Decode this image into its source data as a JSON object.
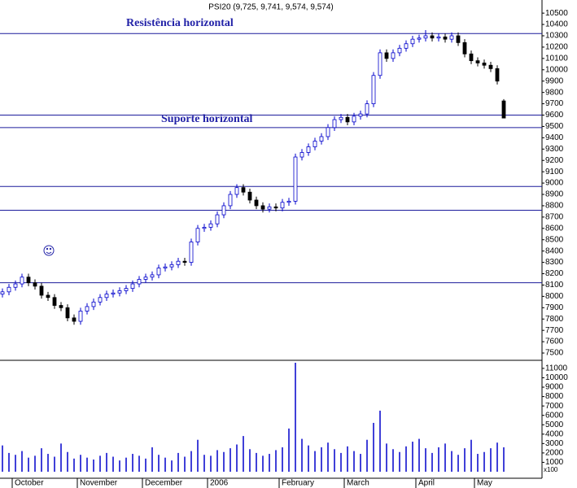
{
  "chart_data": {
    "type": "candlestick",
    "title": "PSI20 (9,725, 9,741, 9,574, 9,574)",
    "categories": [
      null,
      null,
      "October",
      null,
      null,
      null,
      null,
      null,
      null,
      null,
      null,
      null,
      "November",
      null,
      null,
      null,
      null,
      null,
      null,
      null,
      null,
      null,
      "December",
      null,
      null,
      null,
      null,
      null,
      null,
      null,
      null,
      null,
      "2006",
      null,
      null,
      null,
      null,
      null,
      null,
      null,
      null,
      null,
      null,
      "February",
      null,
      null,
      null,
      null,
      null,
      null,
      null,
      null,
      null,
      "March",
      null,
      null,
      null,
      null,
      null,
      null,
      null,
      null,
      null,
      null,
      "April",
      null,
      null,
      null,
      null,
      null,
      null,
      null,
      null,
      "May",
      null,
      null,
      null,
      null
    ],
    "open": [
      8020,
      8040,
      8080,
      8110,
      8170,
      8120,
      8090,
      8010,
      7990,
      7920,
      7900,
      7810,
      7780,
      7870,
      7910,
      7950,
      7990,
      8020,
      8030,
      8050,
      8070,
      8110,
      8150,
      8170,
      8190,
      8250,
      8260,
      8280,
      8310,
      8300,
      8480,
      8600,
      8610,
      8640,
      8720,
      8800,
      8900,
      8960,
      8920,
      8850,
      8800,
      8770,
      8790,
      8780,
      8830,
      8840,
      9230,
      9270,
      9320,
      9370,
      9410,
      9490,
      9560,
      9580,
      9540,
      9590,
      9610,
      9700,
      9950,
      10150,
      10100,
      10150,
      10190,
      10230,
      10270,
      10280,
      10300,
      10280,
      10290,
      10270,
      10300,
      10240,
      10140,
      10080,
      10060,
      10040,
      10010,
      9725
    ],
    "high": [
      8070,
      8110,
      8140,
      8200,
      8200,
      8150,
      8120,
      8040,
      8020,
      7950,
      7930,
      7840,
      7900,
      7940,
      7980,
      8020,
      8050,
      8060,
      8080,
      8100,
      8140,
      8180,
      8200,
      8220,
      8280,
      8290,
      8310,
      8340,
      8340,
      8510,
      8630,
      8640,
      8670,
      8750,
      8830,
      8930,
      8990,
      8990,
      8950,
      8880,
      8830,
      8820,
      8820,
      8860,
      8870,
      9260,
      9300,
      9350,
      9400,
      9440,
      9520,
      9590,
      9610,
      9610,
      9620,
      9640,
      9730,
      9980,
      10180,
      10180,
      10180,
      10220,
      10260,
      10300,
      10310,
      10350,
      10330,
      10320,
      10320,
      10330,
      10330,
      10270,
      10170,
      10110,
      10090,
      10070,
      10040,
      9741
    ],
    "low": [
      7990,
      8010,
      8050,
      8080,
      8090,
      8060,
      7980,
      7960,
      7890,
      7870,
      7780,
      7750,
      7750,
      7840,
      7880,
      7920,
      7960,
      7990,
      8000,
      8020,
      8040,
      8080,
      8120,
      8140,
      8160,
      8220,
      8230,
      8250,
      8270,
      8270,
      8450,
      8570,
      8580,
      8610,
      8690,
      8770,
      8870,
      8890,
      8820,
      8770,
      8740,
      8740,
      8750,
      8750,
      8800,
      8810,
      9200,
      9240,
      9290,
      9340,
      9380,
      9460,
      9530,
      9510,
      9510,
      9560,
      9580,
      9670,
      9920,
      10070,
      10070,
      10120,
      10160,
      10200,
      10240,
      10250,
      10250,
      10250,
      10240,
      10240,
      10210,
      10110,
      10050,
      10030,
      10010,
      9980,
      9870,
      9574
    ],
    "close": [
      8040,
      8080,
      8110,
      8170,
      8120,
      8090,
      8010,
      7990,
      7920,
      7900,
      7810,
      7780,
      7870,
      7910,
      7950,
      7990,
      8020,
      8030,
      8050,
      8070,
      8110,
      8150,
      8170,
      8190,
      8250,
      8260,
      8280,
      8310,
      8300,
      8480,
      8600,
      8610,
      8640,
      8720,
      8800,
      8900,
      8960,
      8920,
      8850,
      8800,
      8770,
      8790,
      8780,
      8830,
      8840,
      9230,
      9270,
      9320,
      9370,
      9410,
      9490,
      9560,
      9580,
      9540,
      9590,
      9610,
      9700,
      9950,
      10150,
      10100,
      10150,
      10190,
      10230,
      10270,
      10280,
      10300,
      10280,
      10290,
      10270,
      10300,
      10240,
      10140,
      10080,
      10060,
      10040,
      10010,
      9900,
      9574
    ],
    "volume": [
      2800,
      2000,
      1800,
      2200,
      1500,
      1700,
      2500,
      1900,
      1600,
      3000,
      2100,
      1400,
      1800,
      1500,
      1300,
      1700,
      2000,
      1600,
      1200,
      1500,
      1900,
      1700,
      1400,
      2600,
      1800,
      1500,
      1200,
      2000,
      1600,
      2200,
      3400,
      1800,
      1700,
      2300,
      2100,
      2500,
      2900,
      3800,
      2400,
      2000,
      1700,
      1900,
      2300,
      2600,
      4600,
      11600,
      3500,
      2800,
      2200,
      2600,
      3100,
      2400,
      2000,
      2700,
      2200,
      1900,
      3400,
      5200,
      6500,
      3000,
      2400,
      2100,
      2700,
      3200,
      3500,
      2500,
      2000,
      2600,
      3000,
      2200,
      1800,
      2500,
      3400,
      1900,
      2100,
      2500,
      3100,
      2600
    ],
    "ylim": [
      7450,
      10580
    ],
    "yticks": [
      7500,
      7600,
      7700,
      7800,
      7900,
      8000,
      8100,
      8200,
      8300,
      8400,
      8500,
      8600,
      8700,
      8800,
      8900,
      9000,
      9100,
      9200,
      9300,
      9400,
      9500,
      9600,
      9700,
      9800,
      9900,
      10000,
      10100,
      10200,
      10300,
      10400,
      10500
    ],
    "vol_ylim": [
      0,
      11600
    ],
    "vol_yticks": [
      1000,
      2000,
      3000,
      4000,
      5000,
      6000,
      7000,
      8000,
      9000,
      10000,
      11000
    ],
    "volume_unit": "x100",
    "hlines": [
      10320,
      9600,
      9490,
      8970,
      8760,
      8120
    ],
    "annotations": [
      "Resistência horizontal",
      "Suporte horizontal"
    ],
    "color": "#0000cc",
    "down_color": "#000000",
    "line_color": "#1c1c9c"
  }
}
